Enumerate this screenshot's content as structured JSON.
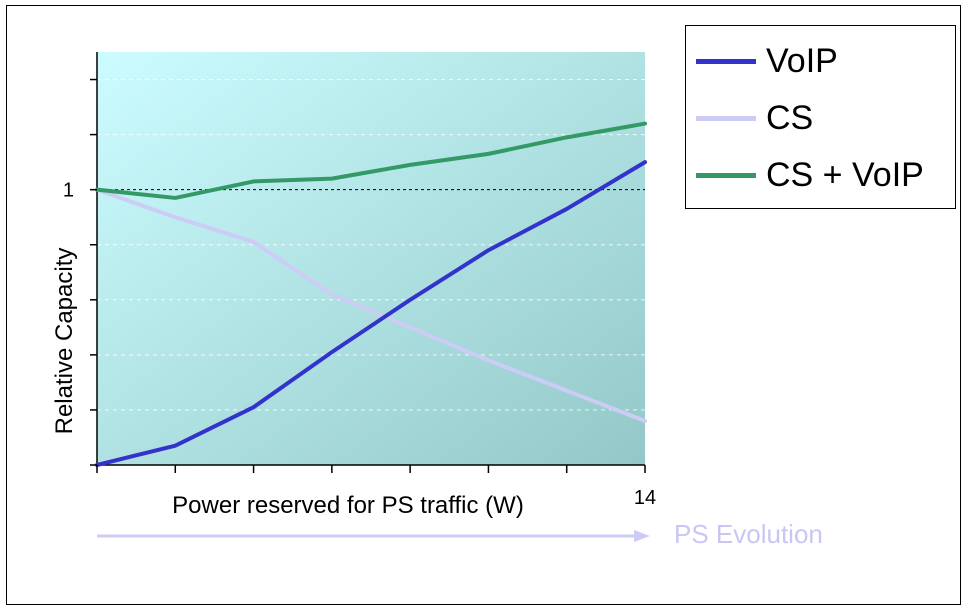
{
  "chart_data": {
    "type": "line",
    "xlabel": "Power reserved for PS traffic (W)",
    "ylabel": "Relative Capacity",
    "x": [
      0,
      2,
      4,
      6,
      8,
      10,
      12,
      14
    ],
    "x_tick_labels": [
      "",
      "",
      "",
      "",
      "",
      "",
      "",
      "14"
    ],
    "y_tick_labels": [
      {
        "value": 1,
        "label": "1"
      }
    ],
    "xlim": [
      0,
      14
    ],
    "ylim": [
      0,
      1.5
    ],
    "reference_line": {
      "y": 1,
      "style": "dashed"
    },
    "grid": true,
    "legend_position": "top-right, outside plot",
    "series": [
      {
        "name": "VoIP",
        "color": "#3333cc",
        "values": [
          0,
          0.07,
          0.21,
          0.41,
          0.6,
          0.78,
          0.93,
          1.1
        ]
      },
      {
        "name": "CS",
        "color": "#ccccf5",
        "values": [
          1,
          0.9,
          0.81,
          0.62,
          0.5,
          0.38,
          0.27,
          0.16
        ]
      },
      {
        "name": "CS + VoIP",
        "color": "#339966",
        "values": [
          1,
          0.97,
          1.03,
          1.04,
          1.09,
          1.13,
          1.19,
          1.24
        ]
      }
    ],
    "annotation": {
      "text": "PS Evolution",
      "color": "#c9c6f4"
    }
  }
}
